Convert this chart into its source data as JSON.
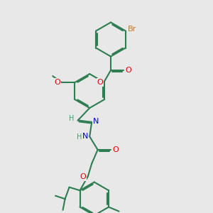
{
  "bg": "#e8e8e8",
  "bc": "#2e7d52",
  "blw": 1.5,
  "dbo": 0.055,
  "Br_col": "#c87820",
  "O_col": "#dd0000",
  "N_col": "#0000cc",
  "H_col": "#4a9a6a",
  "fs": 8.0,
  "xlim": [
    0,
    10
  ],
  "ylim": [
    0,
    10
  ]
}
